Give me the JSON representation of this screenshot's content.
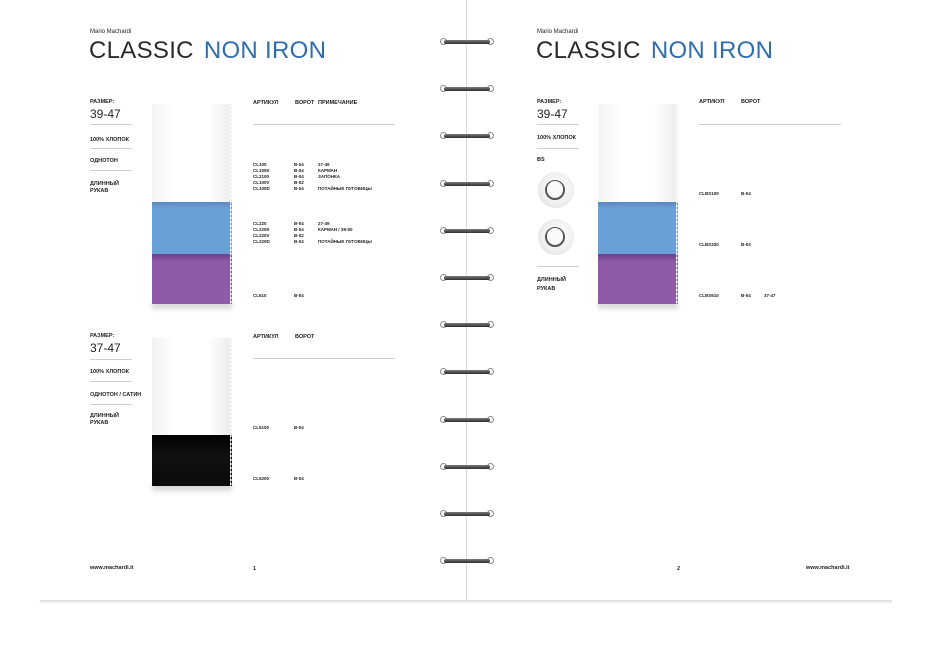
{
  "left_page": {
    "brand": "Mario Machardi",
    "title_part1": "CLASSIC",
    "title_part2": "NON IRON",
    "block1": {
      "size_label": "РАЗМЕР:",
      "size_value": "39-47",
      "fabric": "100% ХЛОПОК",
      "pattern": "ОДНОТОН",
      "sleeve_line1": "ДЛИННЫЙ",
      "sleeve_line2": "РУКАВ",
      "headers": [
        "АРТИКУЛ",
        "ВОРОТ",
        "ПРИМЕЧАНИЕ"
      ],
      "group1": [
        [
          "CL100",
          "B-04",
          "27-49"
        ],
        [
          "CL100K",
          "B-04",
          "КАРМАН"
        ],
        [
          "CL2100",
          "B-04",
          "ЗАПОНКА"
        ],
        [
          "CL100V",
          "B-02",
          ""
        ],
        [
          "CL100D",
          "B-04",
          "ПОТАЙНЫЕ ПУГОВИЦЫ"
        ]
      ],
      "group2": [
        [
          "CL220",
          "B-04",
          "27-49"
        ],
        [
          "CL220K",
          "B-04",
          "КАРМАН / 39-50"
        ],
        [
          "CL220V",
          "B-02",
          ""
        ],
        [
          "CL220D",
          "B-04",
          "ПОТАЙНЫЕ ПУГОВИЦЫ"
        ]
      ],
      "group3": [
        [
          "CL610",
          "B-04",
          ""
        ]
      ],
      "swatch_colors": [
        "#ffffff",
        "#6a9fd6",
        "#8f5ba8"
      ]
    },
    "block2": {
      "size_label": "РАЗМЕР:",
      "size_value": "37-47",
      "fabric": "100% ХЛОПОК",
      "pattern": "ОДНОТОН / САТИН",
      "sleeve_line1": "ДЛИННЫЙ",
      "sleeve_line2": "РУКАВ",
      "headers": [
        "АРТИКУЛ",
        "ВОРОТ"
      ],
      "rows": [
        [
          "CL5100",
          "B-04"
        ],
        [
          "CL5200",
          "B-04"
        ]
      ],
      "swatch_colors": [
        "#ffffff",
        "#0b0b0b"
      ]
    },
    "footer_url": "www.machardi.it",
    "page_number": "1"
  },
  "right_page": {
    "brand": "Mario Machardi",
    "title_part1": "CLASSIC",
    "title_part2": "NON IRON",
    "size_label": "РАЗМЕР:",
    "size_value": "39-47",
    "fabric": "100% ХЛОПОК",
    "collar_label": "BS",
    "sleeve_line1": "ДЛИННЫЙ",
    "sleeve_line2": "РУКАВ",
    "headers": [
      "АРТИКУЛ",
      "ВОРОТ"
    ],
    "rows": [
      [
        "CLBS100",
        "B-04",
        ""
      ],
      [
        "CLBS330",
        "B-04",
        ""
      ],
      [
        "CLBS610",
        "B-04",
        "37-47"
      ]
    ],
    "swatch_colors": [
      "#ffffff",
      "#6a9fd6",
      "#8f5ba8"
    ],
    "footer_url": "www.machardi.it",
    "page_number": "2"
  },
  "binder_rings": 12
}
